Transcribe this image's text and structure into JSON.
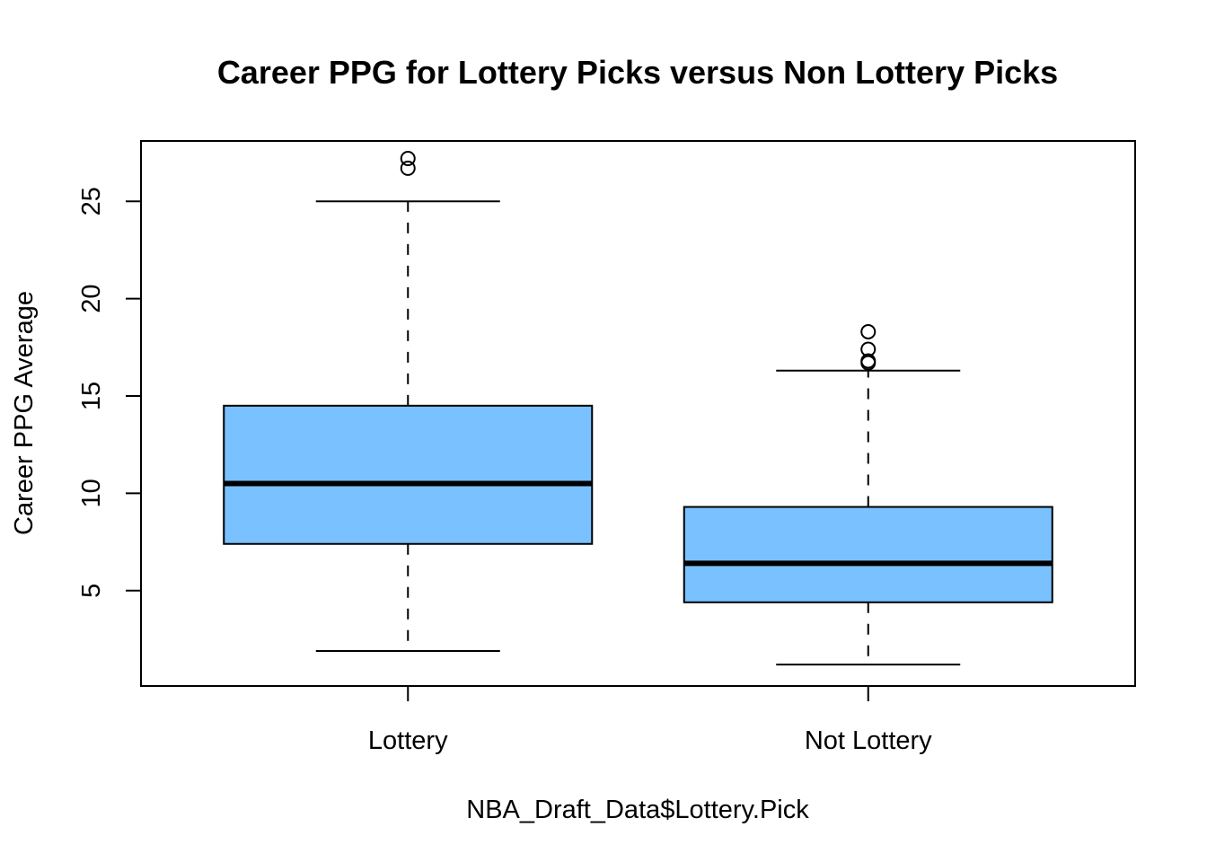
{
  "chart_data": {
    "type": "boxplot",
    "title": "Career PPG for Lottery Picks versus Non Lottery Picks",
    "xlabel": "NBA_Draft_Data$Lottery.Pick",
    "ylabel": "Career PPG Average",
    "categories": [
      "Lottery",
      "Not Lottery"
    ],
    "yticks": [
      5,
      10,
      15,
      20,
      25
    ],
    "ylim": [
      0.1,
      28.1
    ],
    "box_color": "#79C1FF",
    "grid": false,
    "legend": "none",
    "boxes": [
      {
        "name": "Lottery",
        "whisker_low": 1.9,
        "q1": 7.4,
        "median": 10.5,
        "q3": 14.5,
        "whisker_high": 25.0,
        "outliers": [
          26.7,
          27.2
        ]
      },
      {
        "name": "Not Lottery",
        "whisker_low": 1.2,
        "q1": 4.4,
        "median": 6.4,
        "q3": 9.3,
        "whisker_high": 16.3,
        "outliers": [
          16.7,
          16.8,
          17.4,
          18.3
        ]
      }
    ]
  }
}
